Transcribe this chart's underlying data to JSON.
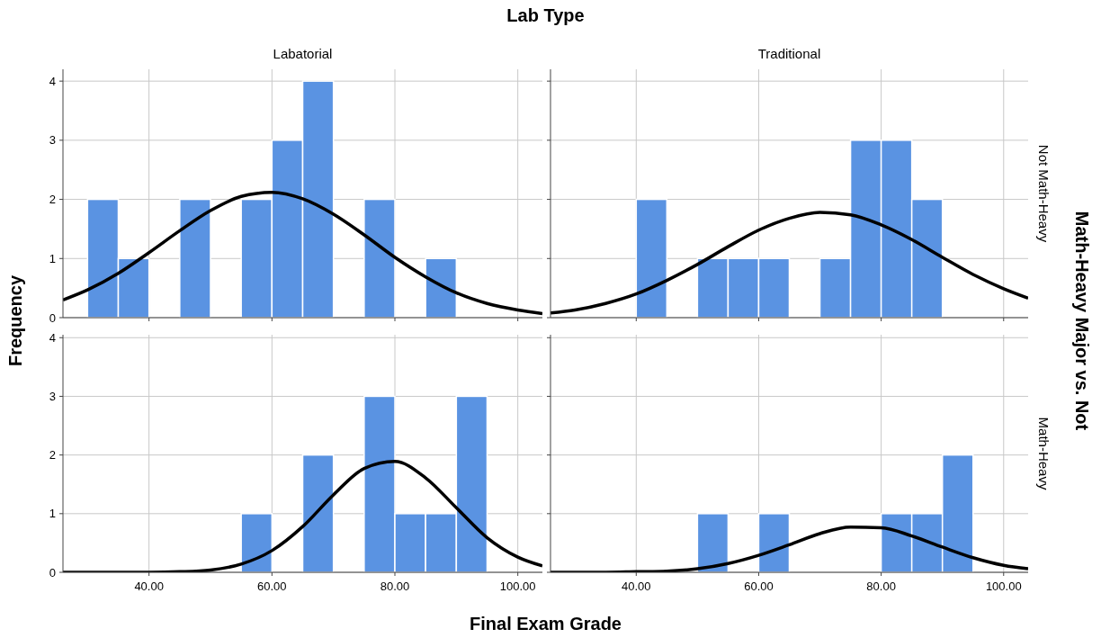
{
  "chart_data": [
    {
      "type": "histogram",
      "title": "Labatorial",
      "annotations": [
        "Lab Type",
        "Final Exam Grade",
        "Frequency",
        "Math-Heavy Major vs. Not"
      ],
      "xlim": [
        26,
        104
      ],
      "ylim": [
        0,
        4.2
      ],
      "xticks": [
        40,
        60,
        80,
        100
      ],
      "yticks": [
        0,
        1,
        2,
        3,
        4
      ],
      "grid": true,
      "tick_labels": "y",
      "series": [
        {
          "type": "histogram",
          "color": "#5a93e2",
          "bins": [
            30,
            35,
            40,
            45,
            50,
            55,
            60,
            65,
            70,
            75,
            80,
            85,
            90,
            95
          ],
          "values": [
            2,
            1,
            0,
            2,
            0,
            2,
            3,
            4,
            0,
            2,
            0,
            1,
            0
          ]
        },
        {
          "type": "line",
          "color": "#000000",
          "x": [
            26,
            30,
            35,
            40,
            45,
            50,
            55,
            60,
            65,
            70,
            75,
            80,
            85,
            90,
            95,
            100,
            104
          ],
          "values": [
            0.3,
            0.47,
            0.75,
            1.1,
            1.47,
            1.81,
            2.05,
            2.12,
            2.01,
            1.75,
            1.4,
            1.02,
            0.69,
            0.42,
            0.24,
            0.13,
            0.07
          ]
        }
      ]
    },
    {
      "type": "histogram",
      "title": "Traditional",
      "y2label": "Not Math-Heavy",
      "xlim": [
        26,
        104
      ],
      "ylim": [
        0,
        4.2
      ],
      "xticks": [
        40,
        60,
        80,
        100
      ],
      "yticks": [
        0,
        1,
        2,
        3,
        4
      ],
      "grid": true,
      "tick_labels": false,
      "series": [
        {
          "type": "histogram",
          "color": "#5a93e2",
          "bins": [
            30,
            35,
            40,
            45,
            50,
            55,
            60,
            65,
            70,
            75,
            80,
            85,
            90,
            95
          ],
          "values": [
            0,
            0,
            2,
            0,
            1,
            1,
            1,
            0,
            1,
            3,
            3,
            2,
            0
          ]
        },
        {
          "type": "line",
          "color": "#000000",
          "x": [
            26,
            30,
            35,
            40,
            45,
            50,
            55,
            60,
            65,
            70,
            75,
            80,
            85,
            90,
            95,
            100,
            104
          ],
          "values": [
            0.08,
            0.13,
            0.24,
            0.4,
            0.63,
            0.9,
            1.2,
            1.48,
            1.68,
            1.78,
            1.74,
            1.57,
            1.32,
            1.02,
            0.73,
            0.49,
            0.33
          ]
        }
      ]
    },
    {
      "type": "histogram",
      "xlim": [
        26,
        104
      ],
      "ylim": [
        0,
        4.05
      ],
      "xticks": [
        {
          "value": 40,
          "label": "40.00"
        },
        {
          "value": 60,
          "label": "60.00"
        },
        {
          "value": 80,
          "label": "80.00"
        },
        {
          "value": 100,
          "label": "100.00"
        }
      ],
      "yticks": [
        0,
        1,
        2,
        3,
        4
      ],
      "grid": true,
      "series": [
        {
          "type": "histogram",
          "color": "#5a93e2",
          "bins": [
            30,
            35,
            40,
            45,
            50,
            55,
            60,
            65,
            70,
            75,
            80,
            85,
            90,
            95
          ],
          "values": [
            0,
            0,
            0,
            0,
            0,
            1,
            0,
            2,
            0,
            3,
            1,
            1,
            3
          ]
        },
        {
          "type": "line",
          "color": "#000000",
          "x": [
            26,
            30,
            35,
            40,
            45,
            50,
            55,
            60,
            65,
            70,
            75,
            80,
            85,
            90,
            95,
            100,
            104
          ],
          "values": [
            0,
            0,
            0,
            0,
            0.01,
            0.04,
            0.14,
            0.37,
            0.78,
            1.32,
            1.77,
            1.89,
            1.61,
            1.1,
            0.59,
            0.26,
            0.11
          ]
        }
      ]
    },
    {
      "type": "histogram",
      "y2label": "Math-Heavy",
      "xlim": [
        26,
        104
      ],
      "ylim": [
        0,
        4.05
      ],
      "xticks": [
        {
          "value": 40,
          "label": "40.00"
        },
        {
          "value": 60,
          "label": "60.00"
        },
        {
          "value": 80,
          "label": "80.00"
        },
        {
          "value": 100,
          "label": "100.00"
        }
      ],
      "yticks": [
        0,
        1,
        2,
        3,
        4
      ],
      "grid": true,
      "tick_labels": "x",
      "series": [
        {
          "type": "histogram",
          "color": "#5a93e2",
          "bins": [
            30,
            35,
            40,
            45,
            50,
            55,
            60,
            65,
            70,
            75,
            80,
            85,
            90,
            95
          ],
          "values": [
            0,
            0,
            0,
            0,
            1,
            0,
            1,
            0,
            0,
            0,
            1,
            1,
            2
          ]
        },
        {
          "type": "line",
          "color": "#000000",
          "x": [
            26,
            30,
            35,
            40,
            45,
            50,
            55,
            60,
            65,
            70,
            75,
            80,
            85,
            90,
            95,
            100,
            104
          ],
          "values": [
            0,
            0,
            0,
            0.01,
            0.02,
            0.06,
            0.15,
            0.29,
            0.47,
            0.66,
            0.77,
            0.76,
            0.62,
            0.43,
            0.25,
            0.12,
            0.06
          ]
        }
      ]
    }
  ]
}
